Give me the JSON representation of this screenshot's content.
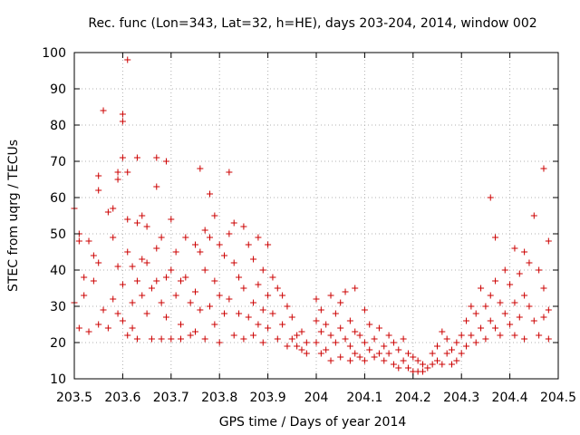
{
  "chart_data": {
    "type": "scatter",
    "title": "Rec. func (Lon=343, Lat=32, h=HE), days 203-204, 2014, window 002",
    "xlabel": "GPS time / Days of year 2014",
    "ylabel": "STEC from uqrg / TECUs",
    "xlim": [
      203.5,
      204.5
    ],
    "ylim": [
      10,
      100
    ],
    "xticks": [
      203.5,
      203.6,
      203.7,
      203.8,
      203.9,
      204,
      204.1,
      204.2,
      204.3,
      204.4,
      204.5
    ],
    "xtick_labels": [
      "203.5",
      "203.6",
      "203.7",
      "203.8",
      "203.9",
      "204",
      "204.1",
      "204.2",
      "204.3",
      "204.4",
      "204.5"
    ],
    "yticks": [
      10,
      20,
      30,
      40,
      50,
      60,
      70,
      80,
      90,
      100
    ],
    "ytick_labels": [
      "10",
      "20",
      "30",
      "40",
      "50",
      "60",
      "70",
      "80",
      "90",
      "100"
    ],
    "grid": true,
    "marker": "plus",
    "color": "#cc0000",
    "series": [
      {
        "points": [
          [
            203.5,
            57
          ],
          [
            203.5,
            31
          ],
          [
            203.51,
            50
          ],
          [
            203.51,
            48
          ],
          [
            203.51,
            24
          ],
          [
            203.52,
            38
          ],
          [
            203.52,
            33
          ],
          [
            203.53,
            48
          ],
          [
            203.53,
            23
          ],
          [
            203.54,
            44
          ],
          [
            203.54,
            37
          ],
          [
            203.55,
            42
          ],
          [
            203.55,
            66
          ],
          [
            203.55,
            62
          ],
          [
            203.55,
            25
          ],
          [
            203.56,
            29
          ],
          [
            203.56,
            84
          ],
          [
            203.57,
            56
          ],
          [
            203.57,
            24
          ],
          [
            203.58,
            49
          ],
          [
            203.58,
            32
          ],
          [
            203.58,
            57
          ],
          [
            203.59,
            65
          ],
          [
            203.59,
            67
          ],
          [
            203.59,
            41
          ],
          [
            203.59,
            28
          ],
          [
            203.6,
            83
          ],
          [
            203.6,
            81
          ],
          [
            203.6,
            71
          ],
          [
            203.6,
            36
          ],
          [
            203.6,
            26
          ],
          [
            203.61,
            98
          ],
          [
            203.61,
            67
          ],
          [
            203.61,
            45
          ],
          [
            203.61,
            54
          ],
          [
            203.61,
            22
          ],
          [
            203.62,
            41
          ],
          [
            203.62,
            31
          ],
          [
            203.62,
            24
          ],
          [
            203.63,
            71
          ],
          [
            203.63,
            53
          ],
          [
            203.63,
            37
          ],
          [
            203.63,
            21
          ],
          [
            203.64,
            55
          ],
          [
            203.64,
            43
          ],
          [
            203.64,
            33
          ],
          [
            203.65,
            52
          ],
          [
            203.65,
            42
          ],
          [
            203.65,
            28
          ],
          [
            203.66,
            35
          ],
          [
            203.66,
            21
          ],
          [
            203.67,
            71
          ],
          [
            203.67,
            63
          ],
          [
            203.67,
            46
          ],
          [
            203.67,
            37
          ],
          [
            203.68,
            49
          ],
          [
            203.68,
            31
          ],
          [
            203.68,
            21
          ],
          [
            203.69,
            70
          ],
          [
            203.69,
            38
          ],
          [
            203.69,
            27
          ],
          [
            203.7,
            54
          ],
          [
            203.7,
            40
          ],
          [
            203.7,
            21
          ],
          [
            203.71,
            45
          ],
          [
            203.71,
            33
          ],
          [
            203.72,
            37
          ],
          [
            203.72,
            25
          ],
          [
            203.72,
            21
          ],
          [
            203.73,
            49
          ],
          [
            203.73,
            38
          ],
          [
            203.74,
            31
          ],
          [
            203.74,
            22
          ],
          [
            203.75,
            47
          ],
          [
            203.75,
            34
          ],
          [
            203.75,
            23
          ],
          [
            203.76,
            68
          ],
          [
            203.76,
            45
          ],
          [
            203.76,
            29
          ],
          [
            203.77,
            51
          ],
          [
            203.77,
            40
          ],
          [
            203.77,
            21
          ],
          [
            203.78,
            49
          ],
          [
            203.78,
            30
          ],
          [
            203.78,
            61
          ],
          [
            203.79,
            55
          ],
          [
            203.79,
            37
          ],
          [
            203.79,
            25
          ],
          [
            203.8,
            47
          ],
          [
            203.8,
            33
          ],
          [
            203.8,
            20
          ],
          [
            203.81,
            44
          ],
          [
            203.81,
            28
          ],
          [
            203.82,
            50
          ],
          [
            203.82,
            67
          ],
          [
            203.82,
            32
          ],
          [
            203.83,
            53
          ],
          [
            203.83,
            42
          ],
          [
            203.83,
            22
          ],
          [
            203.84,
            38
          ],
          [
            203.84,
            28
          ],
          [
            203.85,
            52
          ],
          [
            203.85,
            35
          ],
          [
            203.85,
            21
          ],
          [
            203.86,
            47
          ],
          [
            203.86,
            27
          ],
          [
            203.87,
            43
          ],
          [
            203.87,
            31
          ],
          [
            203.87,
            22
          ],
          [
            203.88,
            49
          ],
          [
            203.88,
            36
          ],
          [
            203.88,
            25
          ],
          [
            203.89,
            40
          ],
          [
            203.89,
            29
          ],
          [
            203.89,
            20
          ],
          [
            203.9,
            47
          ],
          [
            203.9,
            33
          ],
          [
            203.9,
            24
          ],
          [
            203.91,
            38
          ],
          [
            203.91,
            28
          ],
          [
            203.92,
            35
          ],
          [
            203.92,
            21
          ],
          [
            203.93,
            33
          ],
          [
            203.93,
            25
          ],
          [
            203.94,
            30
          ],
          [
            203.94,
            19
          ],
          [
            203.95,
            27
          ],
          [
            203.95,
            21
          ],
          [
            203.96,
            22
          ],
          [
            203.96,
            19
          ],
          [
            203.97,
            23
          ],
          [
            203.97,
            18
          ],
          [
            203.98,
            20
          ],
          [
            203.98,
            17
          ],
          [
            204.0,
            32
          ],
          [
            204.0,
            26
          ],
          [
            204.0,
            20
          ],
          [
            204.01,
            29
          ],
          [
            204.01,
            23
          ],
          [
            204.01,
            17
          ],
          [
            204.02,
            25
          ],
          [
            204.02,
            18
          ],
          [
            204.03,
            33
          ],
          [
            204.03,
            22
          ],
          [
            204.03,
            15
          ],
          [
            204.04,
            28
          ],
          [
            204.04,
            20
          ],
          [
            204.05,
            31
          ],
          [
            204.05,
            24
          ],
          [
            204.05,
            16
          ],
          [
            204.06,
            34
          ],
          [
            204.06,
            21
          ],
          [
            204.07,
            26
          ],
          [
            204.07,
            19
          ],
          [
            204.07,
            15
          ],
          [
            204.08,
            35
          ],
          [
            204.08,
            23
          ],
          [
            204.08,
            17
          ],
          [
            204.09,
            22
          ],
          [
            204.09,
            16
          ],
          [
            204.1,
            29
          ],
          [
            204.1,
            20
          ],
          [
            204.1,
            15
          ],
          [
            204.11,
            25
          ],
          [
            204.11,
            18
          ],
          [
            204.12,
            21
          ],
          [
            204.12,
            16
          ],
          [
            204.13,
            24
          ],
          [
            204.13,
            17
          ],
          [
            204.14,
            19
          ],
          [
            204.14,
            15
          ],
          [
            204.15,
            22
          ],
          [
            204.15,
            17
          ],
          [
            204.16,
            14
          ],
          [
            204.16,
            20
          ],
          [
            204.17,
            18
          ],
          [
            204.17,
            13
          ],
          [
            204.18,
            21
          ],
          [
            204.18,
            15
          ],
          [
            204.19,
            17
          ],
          [
            204.19,
            13
          ],
          [
            204.2,
            16
          ],
          [
            204.2,
            12
          ],
          [
            204.21,
            15
          ],
          [
            204.21,
            12
          ],
          [
            204.22,
            14
          ],
          [
            204.22,
            12
          ],
          [
            204.23,
            13
          ],
          [
            204.24,
            17
          ],
          [
            204.24,
            14
          ],
          [
            204.25,
            19
          ],
          [
            204.25,
            15
          ],
          [
            204.26,
            23
          ],
          [
            204.26,
            14
          ],
          [
            204.27,
            21
          ],
          [
            204.27,
            17
          ],
          [
            204.28,
            18
          ],
          [
            204.28,
            14
          ],
          [
            204.29,
            20
          ],
          [
            204.29,
            15
          ],
          [
            204.3,
            22
          ],
          [
            204.3,
            17
          ],
          [
            204.31,
            26
          ],
          [
            204.31,
            19
          ],
          [
            204.32,
            30
          ],
          [
            204.32,
            22
          ],
          [
            204.33,
            28
          ],
          [
            204.33,
            20
          ],
          [
            204.34,
            35
          ],
          [
            204.34,
            24
          ],
          [
            204.35,
            30
          ],
          [
            204.35,
            21
          ],
          [
            204.36,
            60
          ],
          [
            204.36,
            33
          ],
          [
            204.36,
            26
          ],
          [
            204.37,
            49
          ],
          [
            204.37,
            37
          ],
          [
            204.37,
            24
          ],
          [
            204.38,
            31
          ],
          [
            204.38,
            22
          ],
          [
            204.39,
            40
          ],
          [
            204.39,
            28
          ],
          [
            204.4,
            36
          ],
          [
            204.4,
            25
          ],
          [
            204.41,
            46
          ],
          [
            204.41,
            31
          ],
          [
            204.41,
            22
          ],
          [
            204.42,
            39
          ],
          [
            204.42,
            27
          ],
          [
            204.43,
            45
          ],
          [
            204.43,
            33
          ],
          [
            204.43,
            21
          ],
          [
            204.44,
            42
          ],
          [
            204.44,
            30
          ],
          [
            204.45,
            55
          ],
          [
            204.45,
            26
          ],
          [
            204.46,
            40
          ],
          [
            204.46,
            22
          ],
          [
            204.47,
            68
          ],
          [
            204.47,
            35
          ],
          [
            204.47,
            27
          ],
          [
            204.48,
            48
          ],
          [
            204.48,
            29
          ],
          [
            204.48,
            21
          ]
        ]
      }
    ]
  }
}
